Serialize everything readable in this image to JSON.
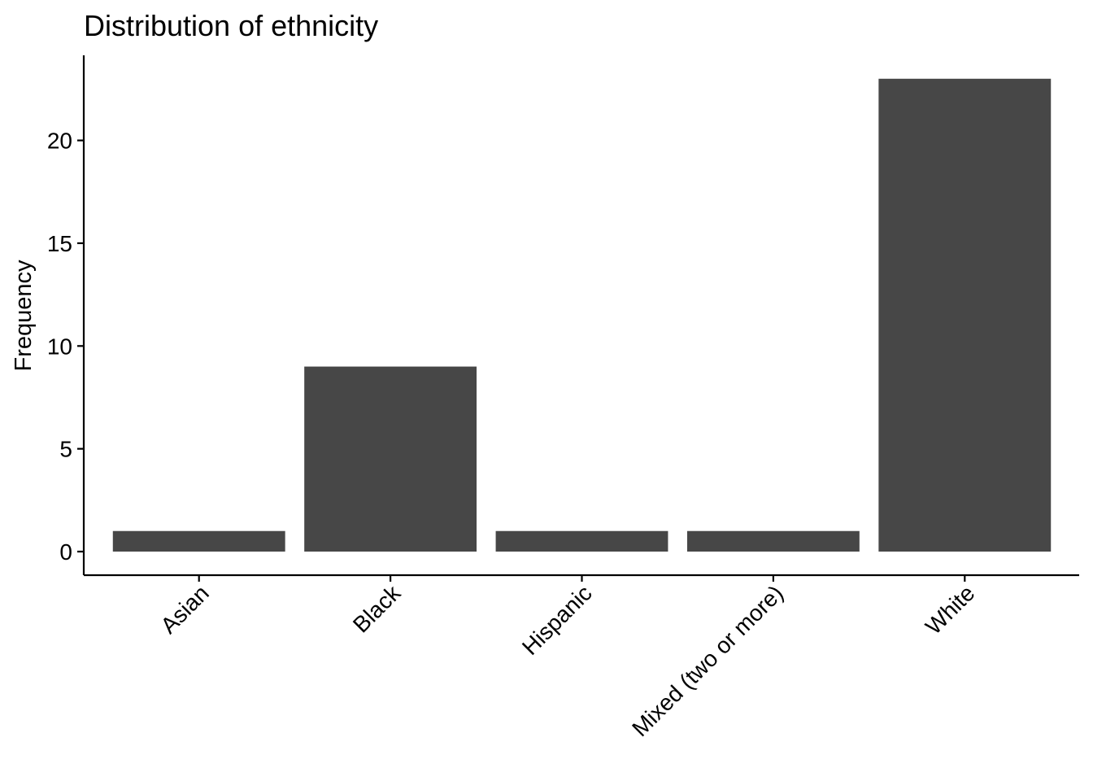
{
  "chart_data": {
    "type": "bar",
    "title": "Distribution of ethnicity",
    "xlabel": "",
    "ylabel": "Frequency",
    "categories": [
      "Asian",
      "Black",
      "Hispanic",
      "Mixed (two or more)",
      "White"
    ],
    "values": [
      1,
      9,
      1,
      1,
      23
    ],
    "ylim": [
      0,
      24
    ],
    "yticks": [
      0,
      5,
      10,
      15,
      20
    ],
    "grid": false,
    "legend": "none",
    "bar_color": "#474747",
    "axis_color": "#000000"
  }
}
